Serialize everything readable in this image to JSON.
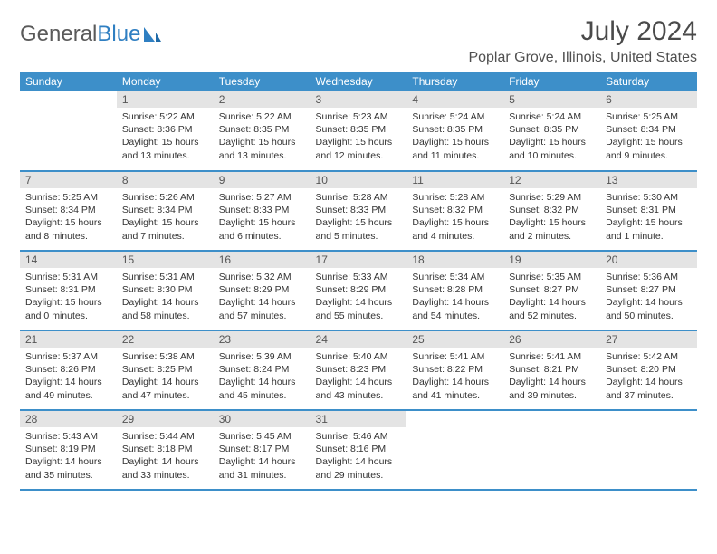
{
  "brand": {
    "part1": "General",
    "part2": "Blue"
  },
  "title": "July 2024",
  "location": "Poplar Grove, Illinois, United States",
  "colors": {
    "header_bg": "#3d8fc9",
    "header_text": "#ffffff",
    "daynum_bg": "#e4e4e4",
    "row_border": "#3d8fc9",
    "title_color": "#4a4a4a",
    "logo_gray": "#5a5a5a",
    "logo_blue": "#2f7fc2"
  },
  "weekdays": [
    "Sunday",
    "Monday",
    "Tuesday",
    "Wednesday",
    "Thursday",
    "Friday",
    "Saturday"
  ],
  "weeks": [
    [
      {
        "empty": true
      },
      {
        "n": "1",
        "sr": "5:22 AM",
        "ss": "8:36 PM",
        "dl": "15 hours and 13 minutes."
      },
      {
        "n": "2",
        "sr": "5:22 AM",
        "ss": "8:35 PM",
        "dl": "15 hours and 13 minutes."
      },
      {
        "n": "3",
        "sr": "5:23 AM",
        "ss": "8:35 PM",
        "dl": "15 hours and 12 minutes."
      },
      {
        "n": "4",
        "sr": "5:24 AM",
        "ss": "8:35 PM",
        "dl": "15 hours and 11 minutes."
      },
      {
        "n": "5",
        "sr": "5:24 AM",
        "ss": "8:35 PM",
        "dl": "15 hours and 10 minutes."
      },
      {
        "n": "6",
        "sr": "5:25 AM",
        "ss": "8:34 PM",
        "dl": "15 hours and 9 minutes."
      }
    ],
    [
      {
        "n": "7",
        "sr": "5:25 AM",
        "ss": "8:34 PM",
        "dl": "15 hours and 8 minutes."
      },
      {
        "n": "8",
        "sr": "5:26 AM",
        "ss": "8:34 PM",
        "dl": "15 hours and 7 minutes."
      },
      {
        "n": "9",
        "sr": "5:27 AM",
        "ss": "8:33 PM",
        "dl": "15 hours and 6 minutes."
      },
      {
        "n": "10",
        "sr": "5:28 AM",
        "ss": "8:33 PM",
        "dl": "15 hours and 5 minutes."
      },
      {
        "n": "11",
        "sr": "5:28 AM",
        "ss": "8:32 PM",
        "dl": "15 hours and 4 minutes."
      },
      {
        "n": "12",
        "sr": "5:29 AM",
        "ss": "8:32 PM",
        "dl": "15 hours and 2 minutes."
      },
      {
        "n": "13",
        "sr": "5:30 AM",
        "ss": "8:31 PM",
        "dl": "15 hours and 1 minute."
      }
    ],
    [
      {
        "n": "14",
        "sr": "5:31 AM",
        "ss": "8:31 PM",
        "dl": "15 hours and 0 minutes."
      },
      {
        "n": "15",
        "sr": "5:31 AM",
        "ss": "8:30 PM",
        "dl": "14 hours and 58 minutes."
      },
      {
        "n": "16",
        "sr": "5:32 AM",
        "ss": "8:29 PM",
        "dl": "14 hours and 57 minutes."
      },
      {
        "n": "17",
        "sr": "5:33 AM",
        "ss": "8:29 PM",
        "dl": "14 hours and 55 minutes."
      },
      {
        "n": "18",
        "sr": "5:34 AM",
        "ss": "8:28 PM",
        "dl": "14 hours and 54 minutes."
      },
      {
        "n": "19",
        "sr": "5:35 AM",
        "ss": "8:27 PM",
        "dl": "14 hours and 52 minutes."
      },
      {
        "n": "20",
        "sr": "5:36 AM",
        "ss": "8:27 PM",
        "dl": "14 hours and 50 minutes."
      }
    ],
    [
      {
        "n": "21",
        "sr": "5:37 AM",
        "ss": "8:26 PM",
        "dl": "14 hours and 49 minutes."
      },
      {
        "n": "22",
        "sr": "5:38 AM",
        "ss": "8:25 PM",
        "dl": "14 hours and 47 minutes."
      },
      {
        "n": "23",
        "sr": "5:39 AM",
        "ss": "8:24 PM",
        "dl": "14 hours and 45 minutes."
      },
      {
        "n": "24",
        "sr": "5:40 AM",
        "ss": "8:23 PM",
        "dl": "14 hours and 43 minutes."
      },
      {
        "n": "25",
        "sr": "5:41 AM",
        "ss": "8:22 PM",
        "dl": "14 hours and 41 minutes."
      },
      {
        "n": "26",
        "sr": "5:41 AM",
        "ss": "8:21 PM",
        "dl": "14 hours and 39 minutes."
      },
      {
        "n": "27",
        "sr": "5:42 AM",
        "ss": "8:20 PM",
        "dl": "14 hours and 37 minutes."
      }
    ],
    [
      {
        "n": "28",
        "sr": "5:43 AM",
        "ss": "8:19 PM",
        "dl": "14 hours and 35 minutes."
      },
      {
        "n": "29",
        "sr": "5:44 AM",
        "ss": "8:18 PM",
        "dl": "14 hours and 33 minutes."
      },
      {
        "n": "30",
        "sr": "5:45 AM",
        "ss": "8:17 PM",
        "dl": "14 hours and 31 minutes."
      },
      {
        "n": "31",
        "sr": "5:46 AM",
        "ss": "8:16 PM",
        "dl": "14 hours and 29 minutes."
      },
      {
        "empty": true
      },
      {
        "empty": true
      },
      {
        "empty": true
      }
    ]
  ],
  "labels": {
    "sunrise": "Sunrise:",
    "sunset": "Sunset:",
    "daylight": "Daylight:"
  }
}
